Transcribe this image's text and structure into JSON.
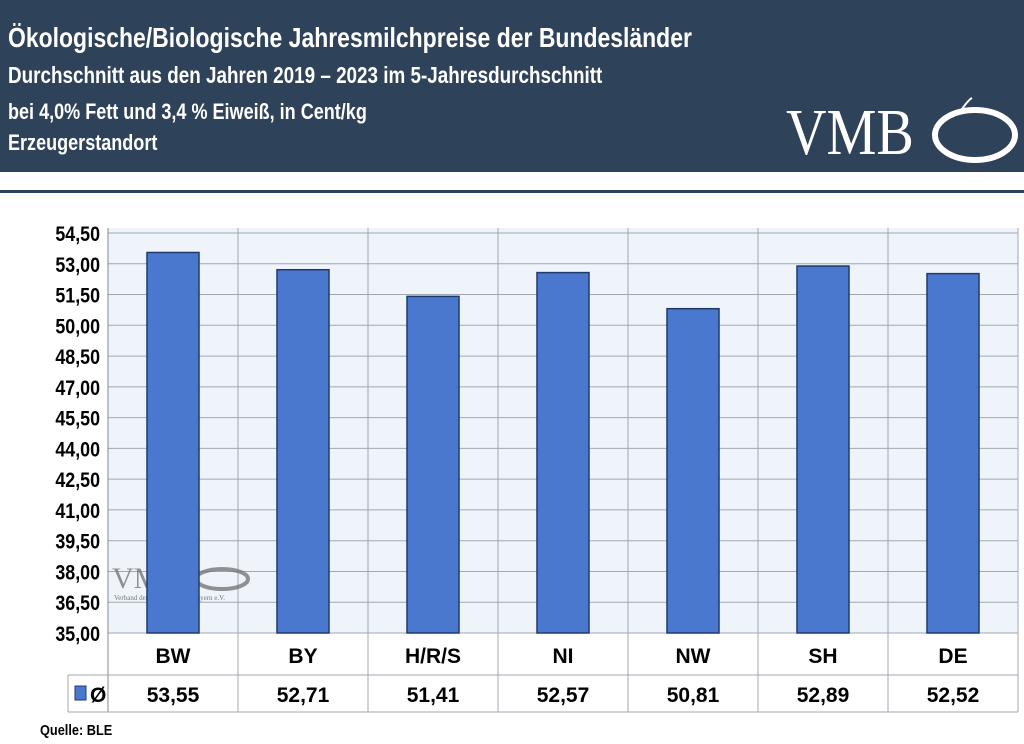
{
  "header": {
    "title": "Ökologische/Biologische Jahresmilchpreise der Bundesländer",
    "subtitle1": "Durchschnitt aus den Jahren 2019 – 2023 im 5-Jahresdurchschnitt",
    "subtitle2": "bei 4,0% Fett und 3,4 % Eiweiß, in Cent/kg",
    "subtitle3": "Erzeugerstandort",
    "logo": "VMB"
  },
  "watermark": {
    "logo": "VMB",
    "text": "Verband der Milcherzeuger Bayern e.V."
  },
  "source": "Quelle: BLE",
  "colors": {
    "header": "#2e4259",
    "bar": "#4a78cf",
    "plot_bg": "#eef4fa"
  },
  "chart_data": {
    "type": "bar",
    "categories": [
      "BW",
      "BY",
      "H/R/S",
      "NI",
      "NW",
      "SH",
      "DE"
    ],
    "series": [
      {
        "name": "Ø",
        "values": [
          53.55,
          52.71,
          51.41,
          52.57,
          50.81,
          52.89,
          52.52
        ]
      }
    ],
    "value_labels": [
      "53,55",
      "52,71",
      "51,41",
      "52,57",
      "50,81",
      "52,89",
      "52,52"
    ],
    "ylim": [
      35,
      54.5
    ],
    "yticks": [
      "35,00",
      "36,50",
      "38,00",
      "39,50",
      "41,00",
      "42,50",
      "44,00",
      "45,50",
      "47,00",
      "48,50",
      "50,00",
      "51,50",
      "53,00",
      "54,50"
    ],
    "grid": true,
    "legend": "data-table"
  }
}
